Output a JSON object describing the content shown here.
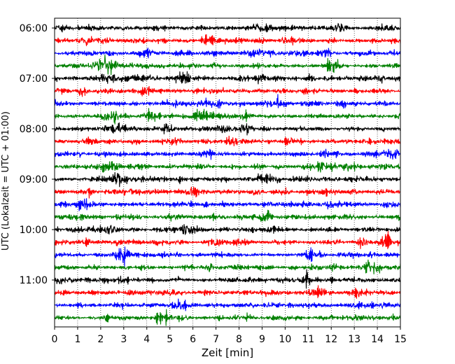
{
  "chart_data": {
    "type": "line",
    "title": "",
    "xlabel": "Zeit  [min]",
    "ylabel": "UTC (Lokalzeit = UTC + 01:00)",
    "xlim": [
      0,
      15
    ],
    "x_ticks": [
      0,
      1,
      2,
      3,
      4,
      5,
      6,
      7,
      8,
      9,
      10,
      11,
      12,
      13,
      14,
      15
    ],
    "x_tick_labels": [
      "0",
      "1",
      "2",
      "3",
      "4",
      "5",
      "6",
      "7",
      "8",
      "9",
      "10",
      "11",
      "12",
      "13",
      "14",
      "15"
    ],
    "y_ticks": [
      "06:00",
      "07:00",
      "08:00",
      "09:00",
      "10:00",
      "11:00"
    ],
    "grid": "vertical-dotted",
    "trace_interval_min": 15,
    "start_time": "06:00",
    "end_time": "11:45",
    "color_cycle": [
      "#000000",
      "#ff0000",
      "#0000ff",
      "#008000"
    ],
    "series": [
      {
        "start": "06:00",
        "color": "#000000"
      },
      {
        "start": "06:15",
        "color": "#ff0000"
      },
      {
        "start": "06:30",
        "color": "#0000ff"
      },
      {
        "start": "06:45",
        "color": "#008000"
      },
      {
        "start": "07:00",
        "color": "#000000"
      },
      {
        "start": "07:15",
        "color": "#ff0000"
      },
      {
        "start": "07:30",
        "color": "#0000ff"
      },
      {
        "start": "07:45",
        "color": "#008000"
      },
      {
        "start": "08:00",
        "color": "#000000"
      },
      {
        "start": "08:15",
        "color": "#ff0000"
      },
      {
        "start": "08:30",
        "color": "#0000ff"
      },
      {
        "start": "08:45",
        "color": "#008000"
      },
      {
        "start": "09:00",
        "color": "#000000"
      },
      {
        "start": "09:15",
        "color": "#ff0000"
      },
      {
        "start": "09:30",
        "color": "#0000ff"
      },
      {
        "start": "09:45",
        "color": "#008000"
      },
      {
        "start": "10:00",
        "color": "#000000"
      },
      {
        "start": "10:15",
        "color": "#ff0000"
      },
      {
        "start": "10:30",
        "color": "#0000ff"
      },
      {
        "start": "10:45",
        "color": "#008000"
      },
      {
        "start": "11:00",
        "color": "#000000"
      },
      {
        "start": "11:15",
        "color": "#ff0000"
      },
      {
        "start": "11:30",
        "color": "#0000ff"
      },
      {
        "start": "11:45",
        "color": "#008000"
      }
    ]
  }
}
